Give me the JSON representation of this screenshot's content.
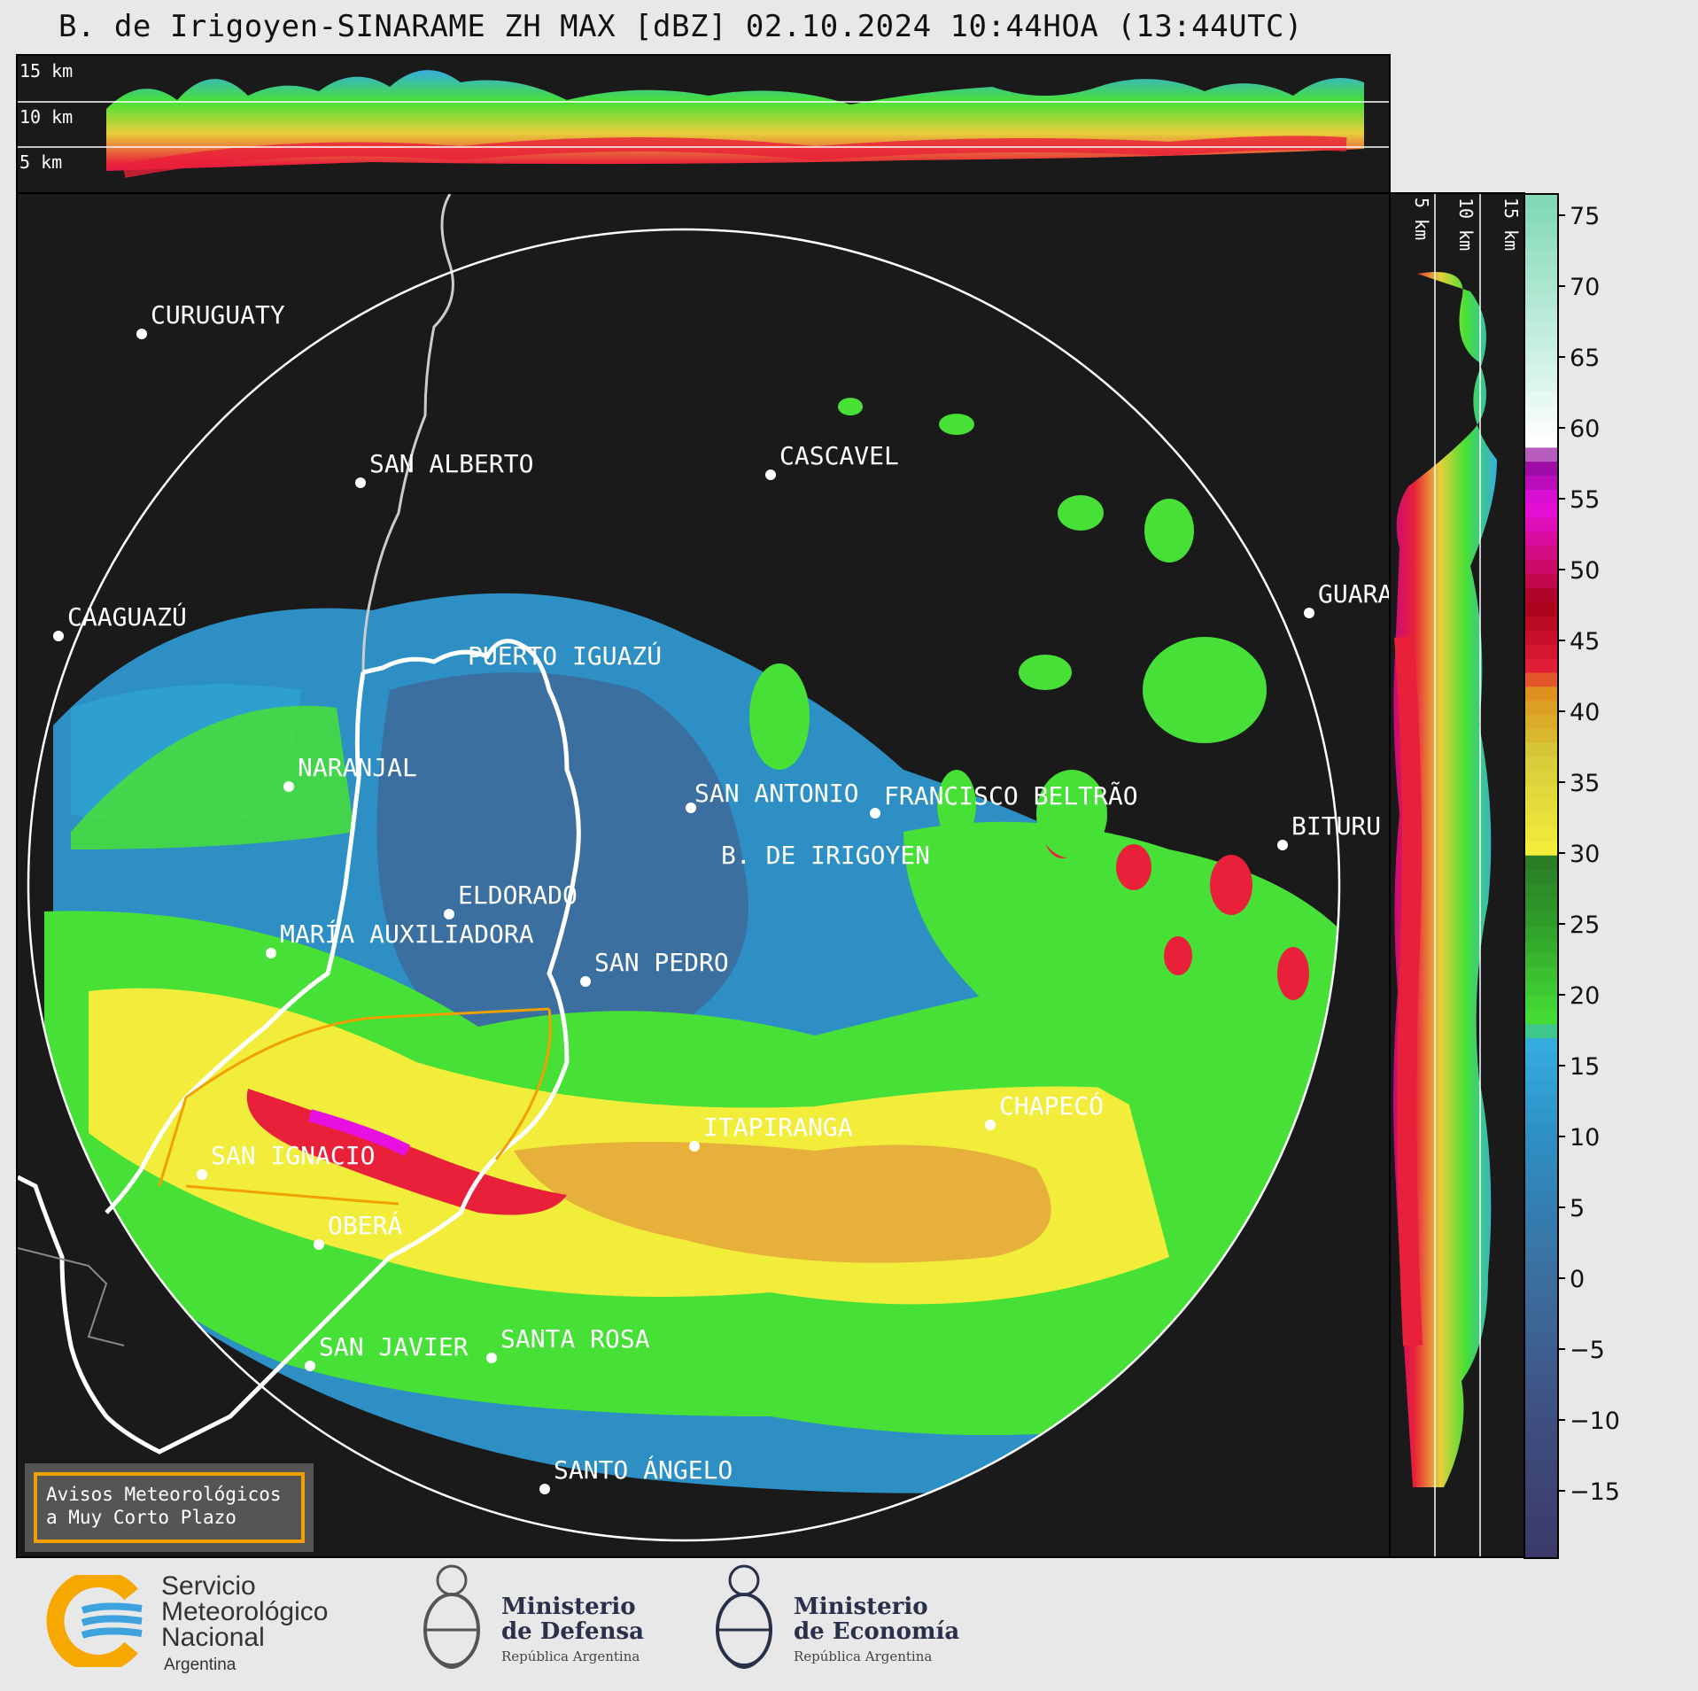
{
  "title": "B. de Irigoyen-SINARAME ZH MAX [dBZ] 02.10.2024 10:44HOA (13:44UTC)",
  "top_profile": {
    "height_labels": [
      "15 km",
      "10 km",
      "5 km"
    ]
  },
  "side_profile": {
    "height_labels": [
      "5 km",
      "10 km",
      "15 km"
    ]
  },
  "cities": [
    {
      "name": "CURUGUATY"
    },
    {
      "name": "SAN ALBERTO"
    },
    {
      "name": "CASCAVEL"
    },
    {
      "name": "CAAGUAZÚ"
    },
    {
      "name": "GUARA"
    },
    {
      "name": "PUERTO IGUAZÚ"
    },
    {
      "name": "NARANJAL"
    },
    {
      "name": "SAN ANTONIO"
    },
    {
      "name": "FRANCISCO BELTRÃO"
    },
    {
      "name": "BITURU"
    },
    {
      "name": "B. DE IRIGOYEN"
    },
    {
      "name": "ELDORADO"
    },
    {
      "name": "MARÍA AUXILIADORA"
    },
    {
      "name": "SAN PEDRO"
    },
    {
      "name": "CHAPECÓ"
    },
    {
      "name": "ITAPIRANGA"
    },
    {
      "name": "SAN IGNACIO"
    },
    {
      "name": "OBERÁ"
    },
    {
      "name": "SAN JAVIER"
    },
    {
      "name": "SANTA ROSA"
    },
    {
      "name": "SANTO ÁNGELO"
    }
  ],
  "colorbar": {
    "unit": "dBZ",
    "ticks": [
      "75",
      "70",
      "65",
      "60",
      "55",
      "50",
      "45",
      "40",
      "35",
      "30",
      "25",
      "20",
      "15",
      "10",
      "5",
      "0",
      "−5",
      "−10",
      "−15"
    ],
    "range": [
      -20,
      77
    ],
    "stops": [
      {
        "dbz": -20,
        "color": "#3a3a6a"
      },
      {
        "dbz": -10,
        "color": "#3f4f80"
      },
      {
        "dbz": 0,
        "color": "#3b6f9f"
      },
      {
        "dbz": 10,
        "color": "#2d8fc4"
      },
      {
        "dbz": 17,
        "color": "#36aee0"
      },
      {
        "dbz": 18,
        "color": "#46e036"
      },
      {
        "dbz": 25,
        "color": "#2f9f2a"
      },
      {
        "dbz": 30,
        "color": "#2a7a25"
      },
      {
        "dbz": 30.5,
        "color": "#f2ec3a"
      },
      {
        "dbz": 37,
        "color": "#d6cc3a"
      },
      {
        "dbz": 42,
        "color": "#e08a1a"
      },
      {
        "dbz": 43,
        "color": "#e8203a"
      },
      {
        "dbz": 48,
        "color": "#a8001a"
      },
      {
        "dbz": 50,
        "color": "#c80a5a"
      },
      {
        "dbz": 55,
        "color": "#e810e0"
      },
      {
        "dbz": 58,
        "color": "#900a9a"
      },
      {
        "dbz": 59.5,
        "color": "#ffffff"
      },
      {
        "dbz": 64,
        "color": "#d8f4ea"
      },
      {
        "dbz": 77,
        "color": "#7ed8b4"
      }
    ]
  },
  "alert_box": {
    "line1": "Avisos Meteorológicos",
    "line2": "a Muy Corto Plazo"
  },
  "logos": {
    "smn": {
      "line1": "Servicio",
      "line2": "Meteorológico",
      "line3": "Nacional",
      "country": "Argentina"
    },
    "defensa": {
      "line1": "Ministerio",
      "line2": "de Defensa",
      "country": "República Argentina"
    },
    "economia": {
      "line1": "Ministerio",
      "line2": "de Economía",
      "country": "República Argentina"
    }
  }
}
